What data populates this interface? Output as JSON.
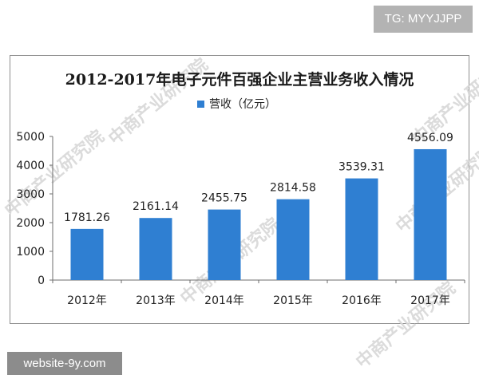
{
  "tags": {
    "top": "TG: MYYJJPP",
    "bottom": "website-9y.com"
  },
  "watermark_text": "中商产业研究院",
  "colors": {
    "bar": "#2f7fd2",
    "axis": "#6e6e6e",
    "frame": "#8f8f8f"
  },
  "chart_data": {
    "type": "bar",
    "title": "2012-2017年电子元件百强企业主营业务收入情况",
    "legend": "营收（亿元）",
    "legend_position": "top",
    "categories": [
      "2012年",
      "2013年",
      "2014年",
      "2015年",
      "2016年",
      "2017年"
    ],
    "series": [
      {
        "name": "营收（亿元）",
        "values": [
          1781.26,
          2161.14,
          2455.75,
          2814.58,
          3539.31,
          4556.09
        ],
        "labels": [
          "1781.26",
          "2161.14",
          "2455.75",
          "2814.58",
          "3539.31",
          "4556.09"
        ]
      }
    ],
    "yticks": [
      "0",
      "1000",
      "2000",
      "3000",
      "4000",
      "5000"
    ],
    "ylim": [
      0,
      5000
    ],
    "grid": false
  }
}
